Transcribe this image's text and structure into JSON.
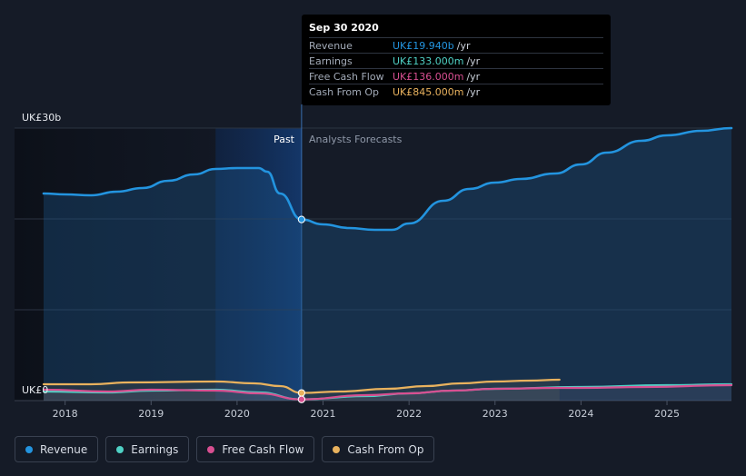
{
  "chart_data": {
    "type": "area",
    "title": "",
    "xlabel": "",
    "ylabel": "",
    "ylim": [
      0,
      30
    ],
    "y_unit": "b",
    "y_tick_labels": {
      "top": "UK£30b",
      "bottom": "UK£0"
    },
    "x_ticks": [
      "2018",
      "2019",
      "2020",
      "2021",
      "2022",
      "2023",
      "2024",
      "2025"
    ],
    "x_range": [
      2017.75,
      2025.75
    ],
    "divider_x": 2020.75,
    "highlight_range": [
      2019.75,
      2020.75
    ],
    "region_labels": {
      "past": "Past",
      "forecast": "Analysts Forecasts"
    },
    "series": [
      {
        "name": "Revenue",
        "color": "#2394df",
        "points": [
          [
            2017.75,
            22.8
          ],
          [
            2018.0,
            22.7
          ],
          [
            2018.3,
            22.6
          ],
          [
            2018.6,
            23.0
          ],
          [
            2018.9,
            23.4
          ],
          [
            2019.2,
            24.2
          ],
          [
            2019.5,
            24.9
          ],
          [
            2019.75,
            25.5
          ],
          [
            2020.0,
            25.6
          ],
          [
            2020.25,
            25.6
          ],
          [
            2020.35,
            25.2
          ],
          [
            2020.5,
            22.8
          ],
          [
            2020.75,
            19.94
          ],
          [
            2021.0,
            19.4
          ],
          [
            2021.3,
            19.0
          ],
          [
            2021.6,
            18.8
          ],
          [
            2021.8,
            18.8
          ],
          [
            2022.0,
            19.5
          ],
          [
            2022.4,
            22.0
          ],
          [
            2022.7,
            23.3
          ],
          [
            2023.0,
            24.0
          ],
          [
            2023.3,
            24.4
          ],
          [
            2023.7,
            25.0
          ],
          [
            2024.0,
            26.0
          ],
          [
            2024.3,
            27.3
          ],
          [
            2024.7,
            28.6
          ],
          [
            2025.0,
            29.2
          ],
          [
            2025.4,
            29.7
          ],
          [
            2025.75,
            30.0
          ]
        ]
      },
      {
        "name": "Earnings",
        "color": "#4fd1c5",
        "points": [
          [
            2017.75,
            1.0
          ],
          [
            2018.5,
            0.9
          ],
          [
            2019.0,
            1.1
          ],
          [
            2019.75,
            1.2
          ],
          [
            2020.25,
            0.9
          ],
          [
            2020.75,
            0.133
          ],
          [
            2021.5,
            0.5
          ],
          [
            2022.0,
            0.8
          ],
          [
            2022.5,
            1.1
          ],
          [
            2023.0,
            1.3
          ],
          [
            2024.0,
            1.5
          ],
          [
            2025.0,
            1.7
          ],
          [
            2025.75,
            1.8
          ]
        ]
      },
      {
        "name": "Free Cash Flow",
        "color": "#d84f91",
        "points": [
          [
            2017.75,
            1.2
          ],
          [
            2018.5,
            1.0
          ],
          [
            2019.0,
            1.2
          ],
          [
            2019.75,
            1.1
          ],
          [
            2020.25,
            0.8
          ],
          [
            2020.75,
            0.136
          ],
          [
            2021.5,
            0.6
          ],
          [
            2022.0,
            0.8
          ],
          [
            2022.5,
            1.1
          ],
          [
            2023.0,
            1.3
          ],
          [
            2023.75,
            1.4
          ],
          [
            2024.0,
            1.4
          ],
          [
            2024.75,
            1.5
          ],
          [
            2025.75,
            1.7
          ]
        ]
      },
      {
        "name": "Cash From Op",
        "color": "#e9b25e",
        "points": [
          [
            2017.75,
            1.8
          ],
          [
            2018.3,
            1.8
          ],
          [
            2018.75,
            2.0
          ],
          [
            2019.75,
            2.1
          ],
          [
            2020.2,
            1.9
          ],
          [
            2020.5,
            1.6
          ],
          [
            2020.75,
            0.845
          ],
          [
            2021.2,
            1.0
          ],
          [
            2021.75,
            1.3
          ],
          [
            2022.2,
            1.6
          ],
          [
            2022.6,
            1.9
          ],
          [
            2023.0,
            2.1
          ],
          [
            2023.4,
            2.2
          ],
          [
            2023.75,
            2.3
          ]
        ]
      }
    ]
  },
  "tooltip": {
    "date": "Sep 30 2020",
    "rows": [
      {
        "label": "Revenue",
        "value": "UK£19.940b",
        "unit": "/yr",
        "color": "#2394df"
      },
      {
        "label": "Earnings",
        "value": "UK£133.000m",
        "unit": "/yr",
        "color": "#4fd1c5"
      },
      {
        "label": "Free Cash Flow",
        "value": "UK£136.000m",
        "unit": "/yr",
        "color": "#d84f91"
      },
      {
        "label": "Cash From Op",
        "value": "UK£845.000m",
        "unit": "/yr",
        "color": "#e9b25e"
      }
    ]
  },
  "legend": [
    {
      "label": "Revenue",
      "color": "#2394df"
    },
    {
      "label": "Earnings",
      "color": "#4fd1c5"
    },
    {
      "label": "Free Cash Flow",
      "color": "#d84f91"
    },
    {
      "label": "Cash From Op",
      "color": "#e9b25e"
    }
  ]
}
